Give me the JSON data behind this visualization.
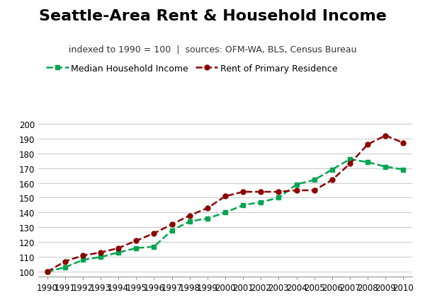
{
  "title": "Seattle-Area Rent & Household Income",
  "subtitle": "indexed to 1990 = 100  |  sources: OFM-WA, BLS, Census Bureau",
  "years": [
    1990,
    1991,
    1992,
    1993,
    1994,
    1995,
    1996,
    1997,
    1998,
    1999,
    2000,
    2001,
    2002,
    2003,
    2004,
    2005,
    2006,
    2007,
    2008,
    2009,
    2010
  ],
  "income": [
    100,
    103,
    108,
    110,
    113,
    116,
    117,
    128,
    134,
    136,
    140,
    145,
    147,
    150,
    159,
    162,
    169,
    176,
    174,
    171,
    169
  ],
  "rent": [
    100,
    107,
    111,
    113,
    116,
    121,
    126,
    132,
    138,
    143,
    151,
    154,
    154,
    154,
    155,
    155,
    162,
    173,
    186,
    192,
    187
  ],
  "income_color": "#00A550",
  "rent_color": "#8B0000",
  "background_color": "#FFFFFF",
  "grid_color": "#CCCCCC",
  "ylim": [
    97,
    205
  ],
  "yticks": [
    100,
    110,
    120,
    130,
    140,
    150,
    160,
    170,
    180,
    190,
    200
  ],
  "legend_income": "Median Household Income",
  "legend_rent": "Rent of Primary Residence",
  "title_fontsize": 16,
  "subtitle_fontsize": 9,
  "legend_fontsize": 9,
  "tick_fontsize": 8.5
}
